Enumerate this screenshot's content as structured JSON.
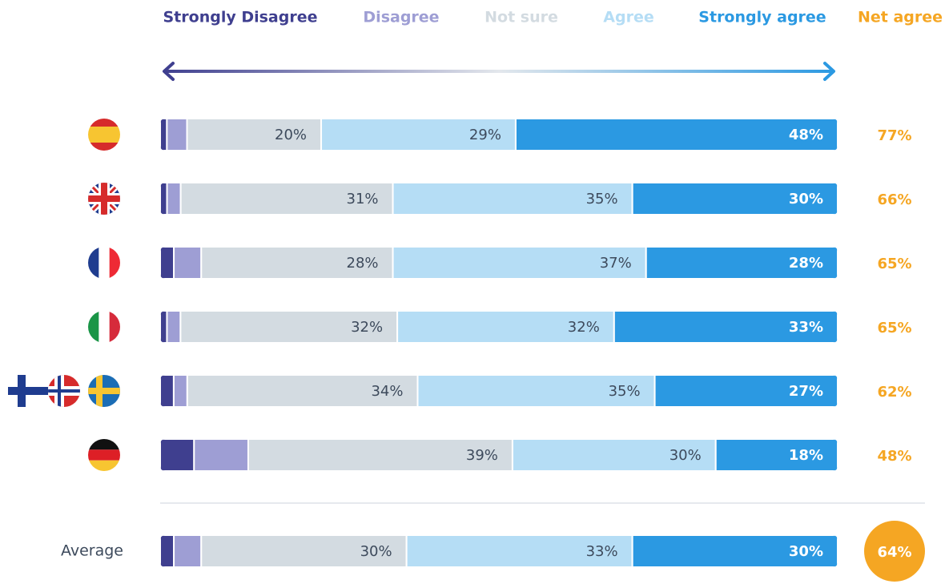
{
  "chart_data": {
    "type": "stacked-bar",
    "categories": [
      null,
      null,
      null,
      null,
      null,
      null,
      "Average"
    ],
    "series": [
      {
        "name": "Strongly Disagree",
        "color": "#3f3f8f",
        "values": [
          1,
          1,
          2,
          1,
          2,
          5,
          2
        ]
      },
      {
        "name": "Disagree",
        "color": "#9e9ed4",
        "values": [
          3,
          2,
          4,
          2,
          2,
          8,
          4
        ]
      },
      {
        "name": "Not sure",
        "color": "#d3dbe1",
        "values": [
          20,
          31,
          28,
          32,
          34,
          39,
          30
        ],
        "value_labels": [
          "20%",
          "31%",
          "28%",
          "32%",
          "34%",
          "39%",
          "30%"
        ]
      },
      {
        "name": "Agree",
        "color": "#b5ddf5",
        "values": [
          29,
          35,
          37,
          32,
          35,
          30,
          33
        ],
        "value_labels": [
          "29%",
          "35%",
          "37%",
          "32%",
          "35%",
          "30%",
          "33%"
        ]
      },
      {
        "name": "Strongly agree",
        "color": "#2b99e2",
        "values": [
          48,
          30,
          28,
          33,
          27,
          18,
          30
        ],
        "value_labels": [
          "48%",
          "30%",
          "28%",
          "33%",
          "27%",
          "18%",
          "30%"
        ]
      }
    ],
    "net_agree": {
      "name": "Net agree",
      "color": "#f5a623",
      "values": [
        77,
        66,
        65,
        65,
        62,
        48,
        64
      ],
      "value_labels": [
        "77%",
        "66%",
        "65%",
        "65%",
        "62%",
        "48%",
        "64%"
      ]
    }
  }
}
